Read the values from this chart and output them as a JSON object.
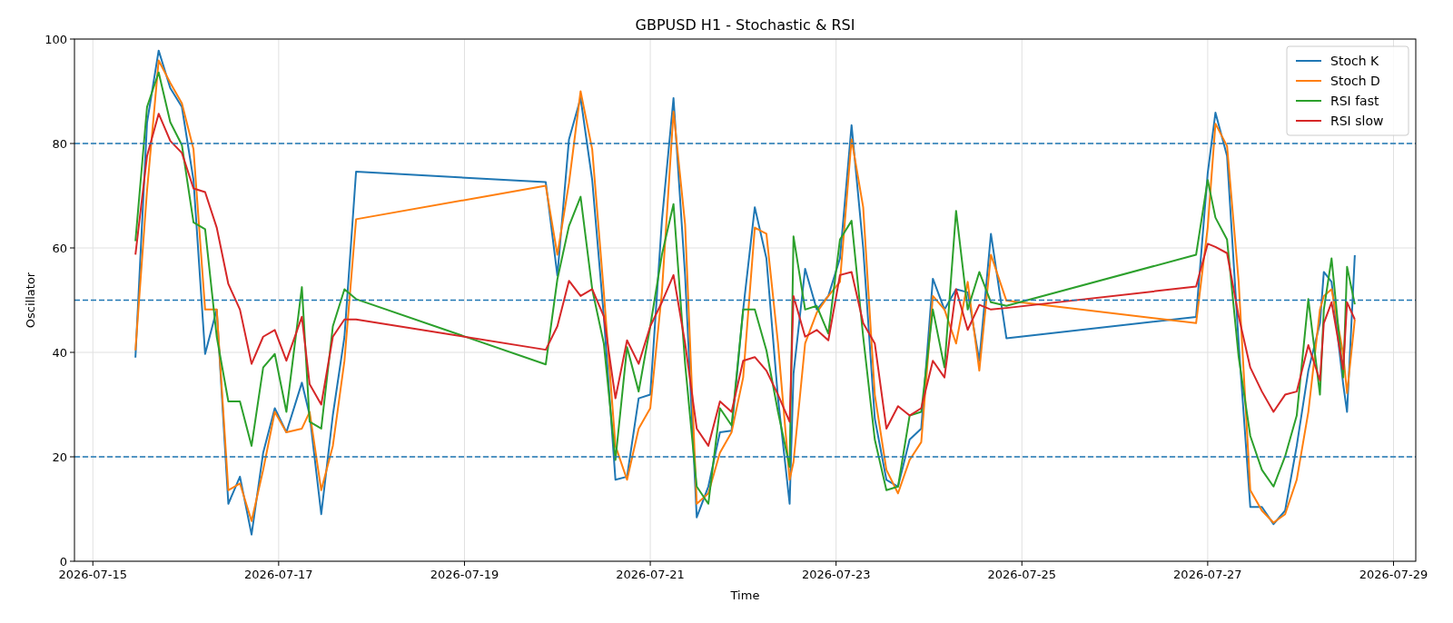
{
  "chart_data": {
    "type": "line",
    "title": "GBPUSD H1 - Stochastic & RSI",
    "xlabel": "Time",
    "ylabel": "Oscillator",
    "x": [
      "2026-07-15T11:00",
      "2026-07-15T14:00",
      "2026-07-15T17:00",
      "2026-07-15T20:00",
      "2026-07-15T23:00",
      "2026-07-16T02:00",
      "2026-07-16T05:00",
      "2026-07-16T08:00",
      "2026-07-16T11:00",
      "2026-07-16T14:00",
      "2026-07-16T17:00",
      "2026-07-16T20:00",
      "2026-07-16T23:00",
      "2026-07-17T02:00",
      "2026-07-17T06:00",
      "2026-07-17T08:00",
      "2026-07-17T11:00",
      "2026-07-17T14:00",
      "2026-07-17T17:00",
      "2026-07-17T20:00",
      "2026-07-19T21:00",
      "2026-07-20T00:00",
      "2026-07-20T03:00",
      "2026-07-20T06:00",
      "2026-07-20T09:00",
      "2026-07-20T12:00",
      "2026-07-20T15:00",
      "2026-07-20T18:00",
      "2026-07-20T21:00",
      "2026-07-21T00:00",
      "2026-07-21T03:00",
      "2026-07-21T06:00",
      "2026-07-21T09:00",
      "2026-07-21T12:00",
      "2026-07-21T15:00",
      "2026-07-21T18:00",
      "2026-07-21T21:00",
      "2026-07-22T00:00",
      "2026-07-22T03:00",
      "2026-07-22T06:00",
      "2026-07-22T09:00",
      "2026-07-22T12:00",
      "2026-07-22T13:00",
      "2026-07-22T16:00",
      "2026-07-22T19:00",
      "2026-07-22T22:00",
      "2026-07-23T01:00",
      "2026-07-23T04:00",
      "2026-07-23T07:00",
      "2026-07-23T10:00",
      "2026-07-23T13:00",
      "2026-07-23T16:00",
      "2026-07-23T19:00",
      "2026-07-23T22:00",
      "2026-07-24T01:00",
      "2026-07-24T04:00",
      "2026-07-24T07:00",
      "2026-07-24T10:00",
      "2026-07-24T13:00",
      "2026-07-24T16:00",
      "2026-07-24T20:00",
      "2026-07-26T21:00",
      "2026-07-27T00:00",
      "2026-07-27T02:00",
      "2026-07-27T05:00",
      "2026-07-27T08:00",
      "2026-07-27T11:00",
      "2026-07-27T14:00",
      "2026-07-27T17:00",
      "2026-07-27T20:00",
      "2026-07-27T23:00",
      "2026-07-28T02:00",
      "2026-07-28T05:00",
      "2026-07-28T06:00",
      "2026-07-28T08:00",
      "2026-07-28T11:00",
      "2026-07-28T12:00",
      "2026-07-28T14:00"
    ],
    "series": [
      {
        "name": "Stoch K",
        "color": "#1f77b4",
        "values": [
          39,
          84,
          97.8,
          90.6,
          87,
          73,
          39.7,
          48.2,
          11,
          16.2,
          5.1,
          20.8,
          29.3,
          24.7,
          34.2,
          28,
          9,
          28,
          43,
          74.6,
          72.6,
          54.7,
          80.8,
          88.7,
          73,
          46.9,
          15.6,
          16.2,
          31.2,
          31.9,
          65.2,
          88.7,
          54.7,
          8.4,
          14.3,
          24.7,
          25,
          48.2,
          67.8,
          58,
          31.2,
          11,
          35.9,
          56,
          48.2,
          50.8,
          58,
          83.5,
          60,
          27.3,
          15.6,
          14.3,
          23.3,
          25.4,
          54.1,
          48.2,
          52.1,
          51.5,
          38.4,
          62.7,
          42.7,
          46.8,
          74.3,
          85.9,
          77.6,
          41.7,
          10.4,
          10.4,
          7.1,
          9.7,
          22.1,
          36.5,
          45.6,
          55.4,
          53.5,
          33.9,
          28.6,
          58.6
        ]
      },
      {
        "name": "Stoch D",
        "color": "#ff7f0e",
        "values": [
          40.4,
          71,
          95.9,
          91.6,
          87.7,
          78.9,
          48.2,
          48.2,
          13.6,
          14.9,
          7.7,
          17.5,
          28.6,
          24.7,
          25.4,
          28.6,
          13.6,
          22.1,
          38.4,
          65.5,
          71.9,
          58.7,
          72.4,
          90,
          78.9,
          51.5,
          22.1,
          15.6,
          25.4,
          29.3,
          51.5,
          86.1,
          64.5,
          11,
          13,
          20.8,
          24.7,
          35.2,
          63.9,
          62.7,
          41.7,
          15.6,
          19,
          41.7,
          47.6,
          50.8,
          53.5,
          80.8,
          67.8,
          31.9,
          17.5,
          13,
          19.4,
          22.8,
          50.8,
          48.2,
          41.7,
          53.5,
          36.5,
          58.7,
          49.9,
          45.6,
          63.9,
          83.8,
          79.5,
          53.5,
          13.6,
          9.7,
          7.4,
          9,
          15.6,
          28.6,
          48.2,
          50.8,
          52.1,
          39.7,
          32.2,
          46.3
        ]
      },
      {
        "name": "RSI fast",
        "color": "#2ca02c",
        "values": [
          61.3,
          87,
          93.6,
          84.1,
          79.7,
          64.9,
          63.6,
          43,
          30.6,
          30.6,
          22.1,
          37.1,
          39.7,
          28.6,
          52.5,
          26.7,
          25.4,
          45,
          52.1,
          50.2,
          37.7,
          54,
          64.2,
          69.8,
          52.1,
          41.7,
          19.4,
          41,
          32.5,
          45,
          58.7,
          68.4,
          37.8,
          14.3,
          11,
          29.3,
          26,
          48.2,
          48.2,
          40.4,
          28.6,
          18.1,
          62.2,
          48.2,
          48.9,
          43.6,
          61.6,
          65.2,
          43,
          23.3,
          13.6,
          14.3,
          27.9,
          28.6,
          48.2,
          37.1,
          67.1,
          48.2,
          55.4,
          49.6,
          48.9,
          58.7,
          73,
          65.8,
          61.6,
          39.1,
          24,
          17.5,
          14.3,
          20.1,
          27.9,
          50.2,
          31.9,
          48.2,
          58,
          35.2,
          56.4,
          49.2
        ]
      },
      {
        "name": "RSI slow",
        "color": "#d62728",
        "values": [
          58.7,
          77.6,
          85.7,
          80.5,
          78.2,
          71.4,
          70.7,
          63.9,
          53.1,
          48.2,
          37.8,
          43,
          44.3,
          38.4,
          46.8,
          33.9,
          30,
          43,
          46.3,
          46.3,
          40.5,
          45,
          53.7,
          50.8,
          52.1,
          46.9,
          31.2,
          42.3,
          37.8,
          45,
          49.6,
          54.8,
          41.7,
          25.4,
          22.1,
          30.6,
          28.6,
          38.4,
          39.1,
          36.5,
          31.9,
          26.7,
          50.8,
          43,
          44.3,
          42.3,
          54.8,
          55.4,
          45.6,
          41.7,
          25.4,
          29.7,
          27.9,
          29.3,
          38.4,
          35.2,
          52.1,
          44.3,
          49.1,
          48.2,
          48.5,
          52.6,
          60.8,
          60.2,
          59,
          46.9,
          37.1,
          32.5,
          28.6,
          31.9,
          32.5,
          41.4,
          34.6,
          45.6,
          49.6,
          36.8,
          49.6,
          46.3
        ]
      }
    ],
    "xlim": [
      "2026-07-14T19:15",
      "2026-07-29T05:45"
    ],
    "xticks": [
      "2026-07-15",
      "2026-07-17",
      "2026-07-19",
      "2026-07-21",
      "2026-07-23",
      "2026-07-25",
      "2026-07-27",
      "2026-07-29"
    ],
    "ylim": [
      0,
      100
    ],
    "yticks": [
      0,
      20,
      40,
      60,
      80,
      100
    ],
    "ref_lines": [
      {
        "axis": "y",
        "value": 80,
        "color": "#1f77b4",
        "line_style": "dashed"
      },
      {
        "axis": "y",
        "value": 50,
        "color": "#1f77b4",
        "line_style": "dashed"
      },
      {
        "axis": "y",
        "value": 20,
        "color": "#1f77b4",
        "line_style": "dashed"
      }
    ],
    "grid": true,
    "legend": "top right",
    "line_style": "solid",
    "marker": "none"
  }
}
